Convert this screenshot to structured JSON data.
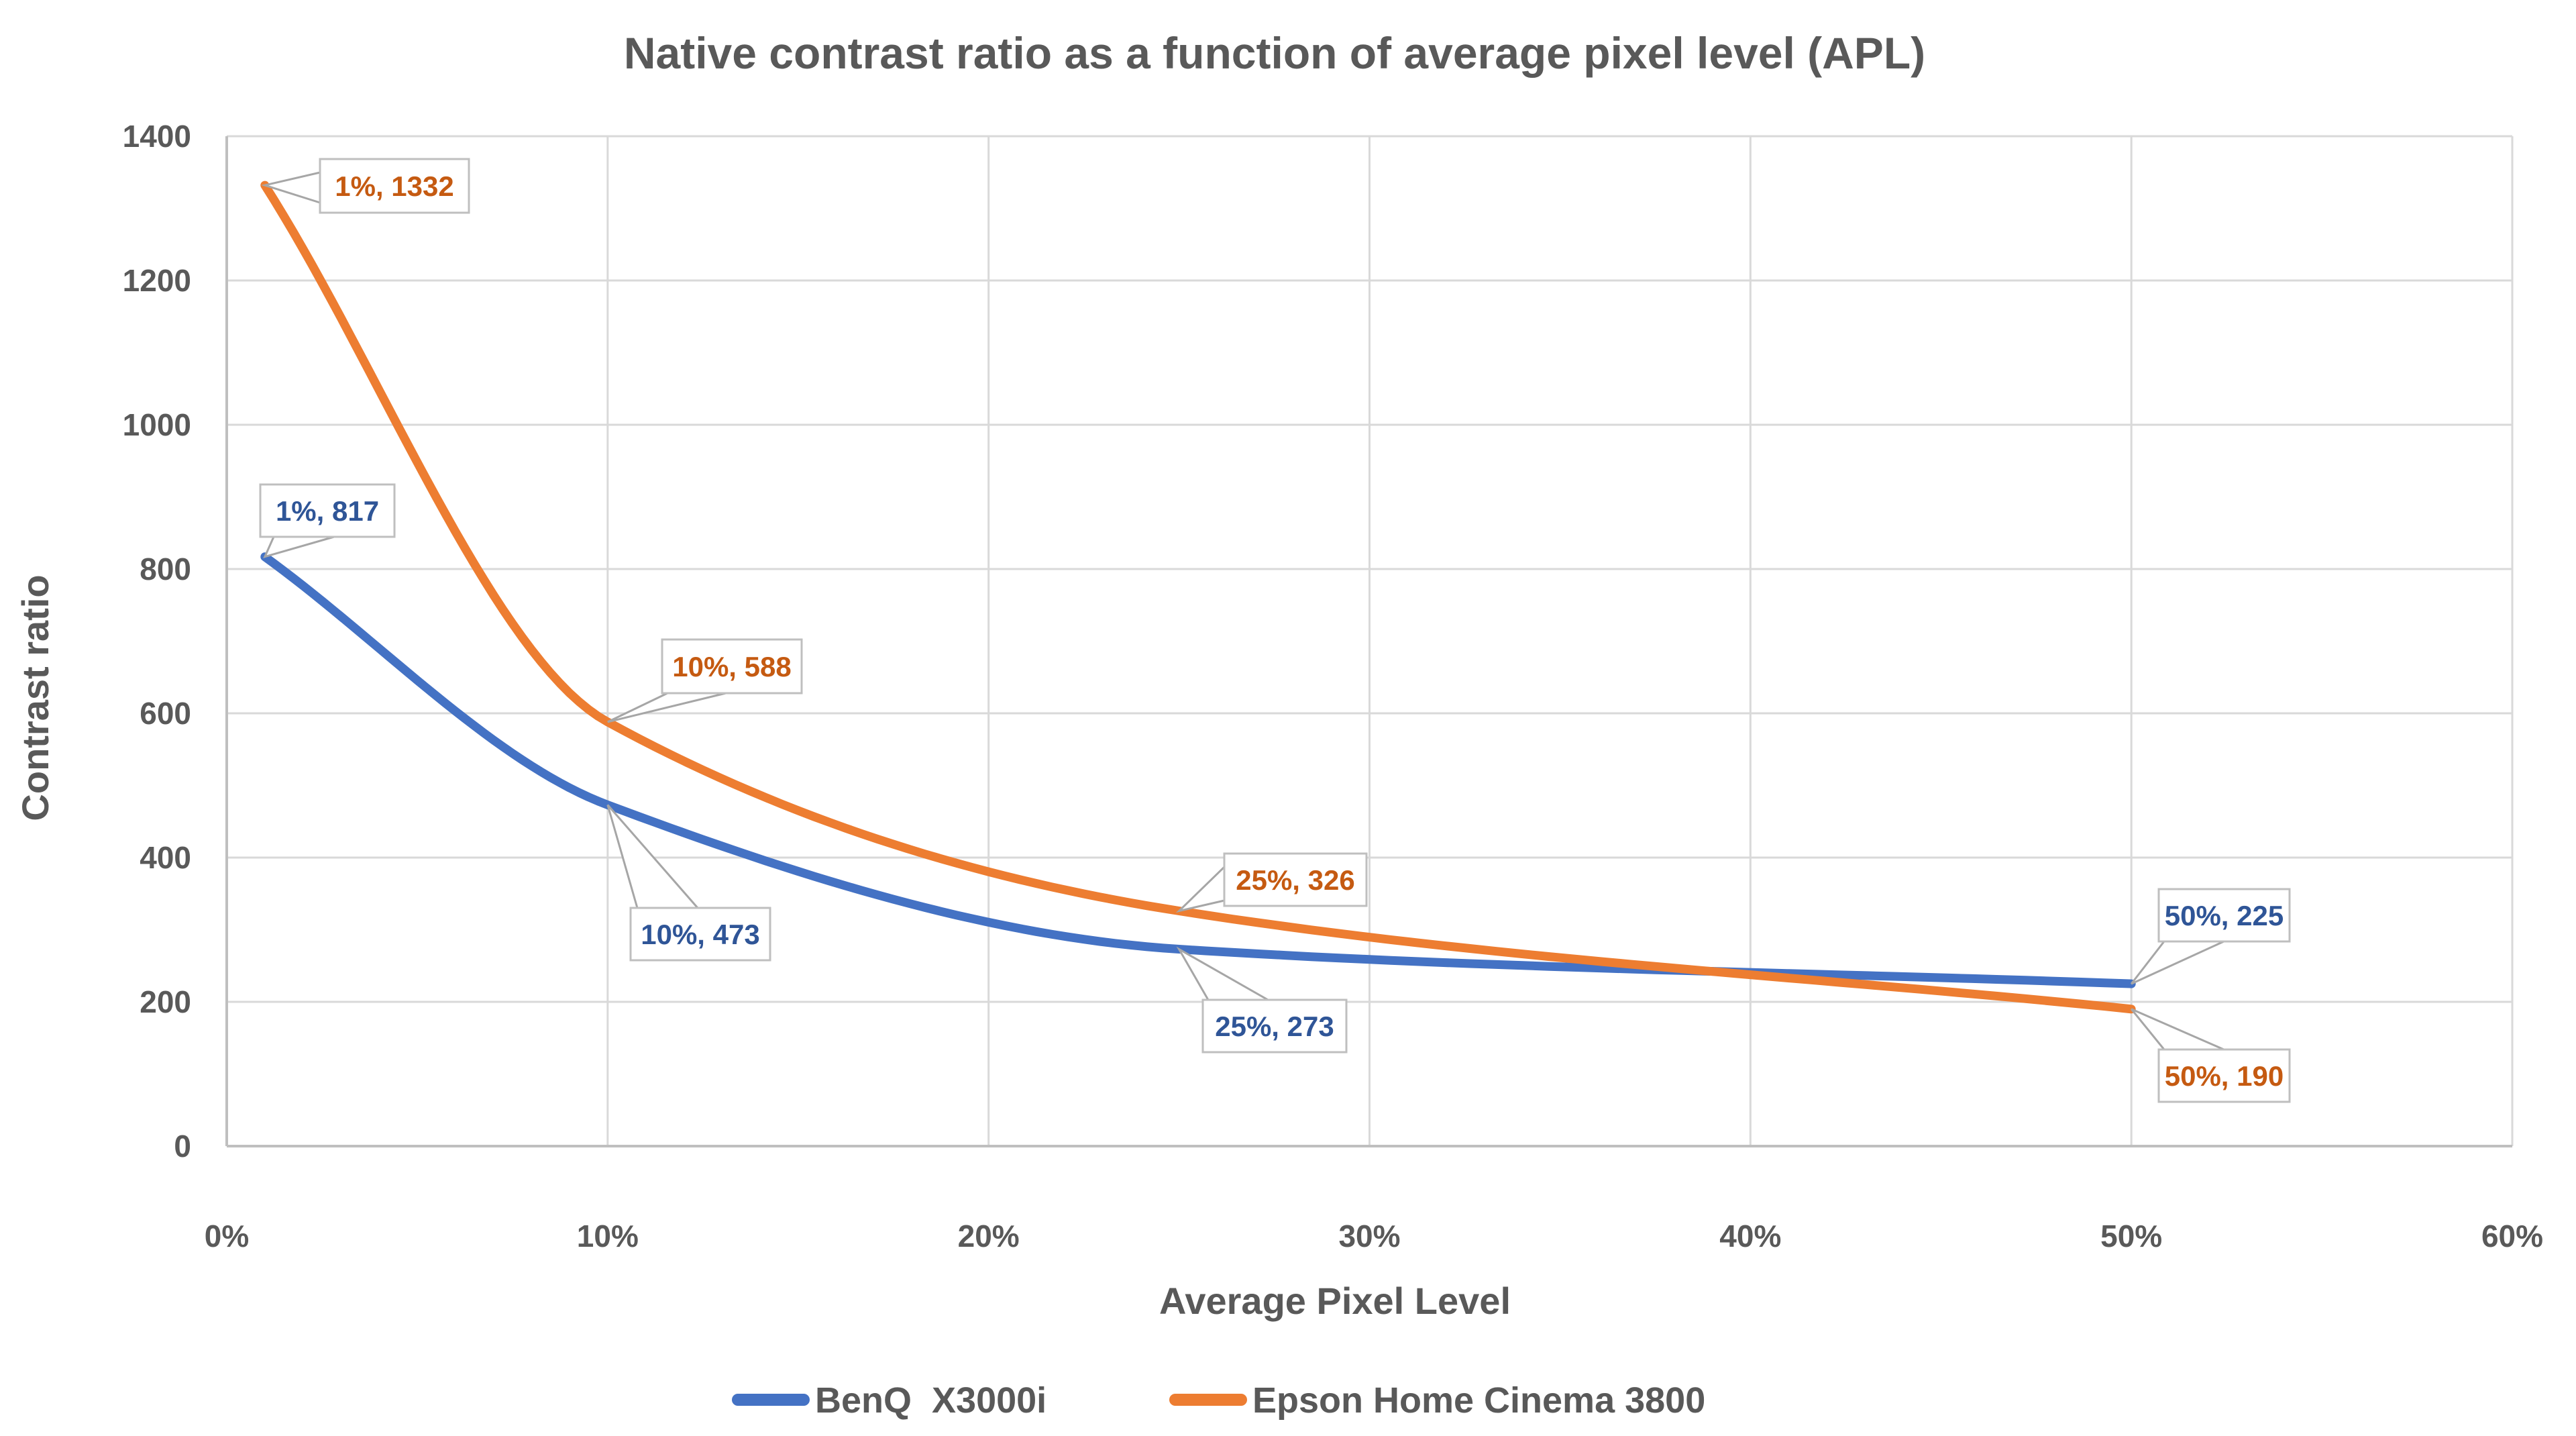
{
  "chart_data": {
    "type": "line",
    "title": "Native contrast ratio as a function of average pixel level (APL)",
    "xlabel": "Average Pixel Level",
    "ylabel": "Contrast ratio",
    "xlim": [
      0,
      60
    ],
    "ylim": [
      0,
      1400
    ],
    "x_ticks": [
      "0%",
      "10%",
      "20%",
      "30%",
      "40%",
      "50%",
      "60%"
    ],
    "x_tick_values": [
      0,
      10,
      20,
      30,
      40,
      50,
      60
    ],
    "y_ticks": [
      "0",
      "200",
      "400",
      "600",
      "800",
      "1000",
      "1200",
      "1400"
    ],
    "y_tick_values": [
      0,
      200,
      400,
      600,
      800,
      1000,
      1200,
      1400
    ],
    "grid": true,
    "legend_position": "bottom",
    "colors": {
      "grid": "#D9D9D9",
      "axis": "#BFBFBF",
      "text": "#595959",
      "callout_border": "#BFBFBF",
      "callout_wedge": "#A6A6A6",
      "callout_fill": "#FFFFFF"
    },
    "series": [
      {
        "name": "BenQ  X3000i",
        "color": "#4472C4",
        "label_color": "#2F5597",
        "x": [
          1,
          10,
          25,
          50
        ],
        "y": [
          817,
          473,
          273,
          225
        ],
        "point_labels": [
          "1%, 817",
          "10%, 473",
          "25%, 273",
          "50%, 225"
        ]
      },
      {
        "name": "Epson Home Cinema 3800",
        "color": "#ED7D31",
        "label_color": "#C55A11",
        "x": [
          1,
          10,
          25,
          50
        ],
        "y": [
          1332,
          588,
          326,
          190
        ],
        "point_labels": [
          "1%, 1332",
          "10%, 588",
          "25%, 326",
          "50%, 190"
        ]
      }
    ]
  }
}
